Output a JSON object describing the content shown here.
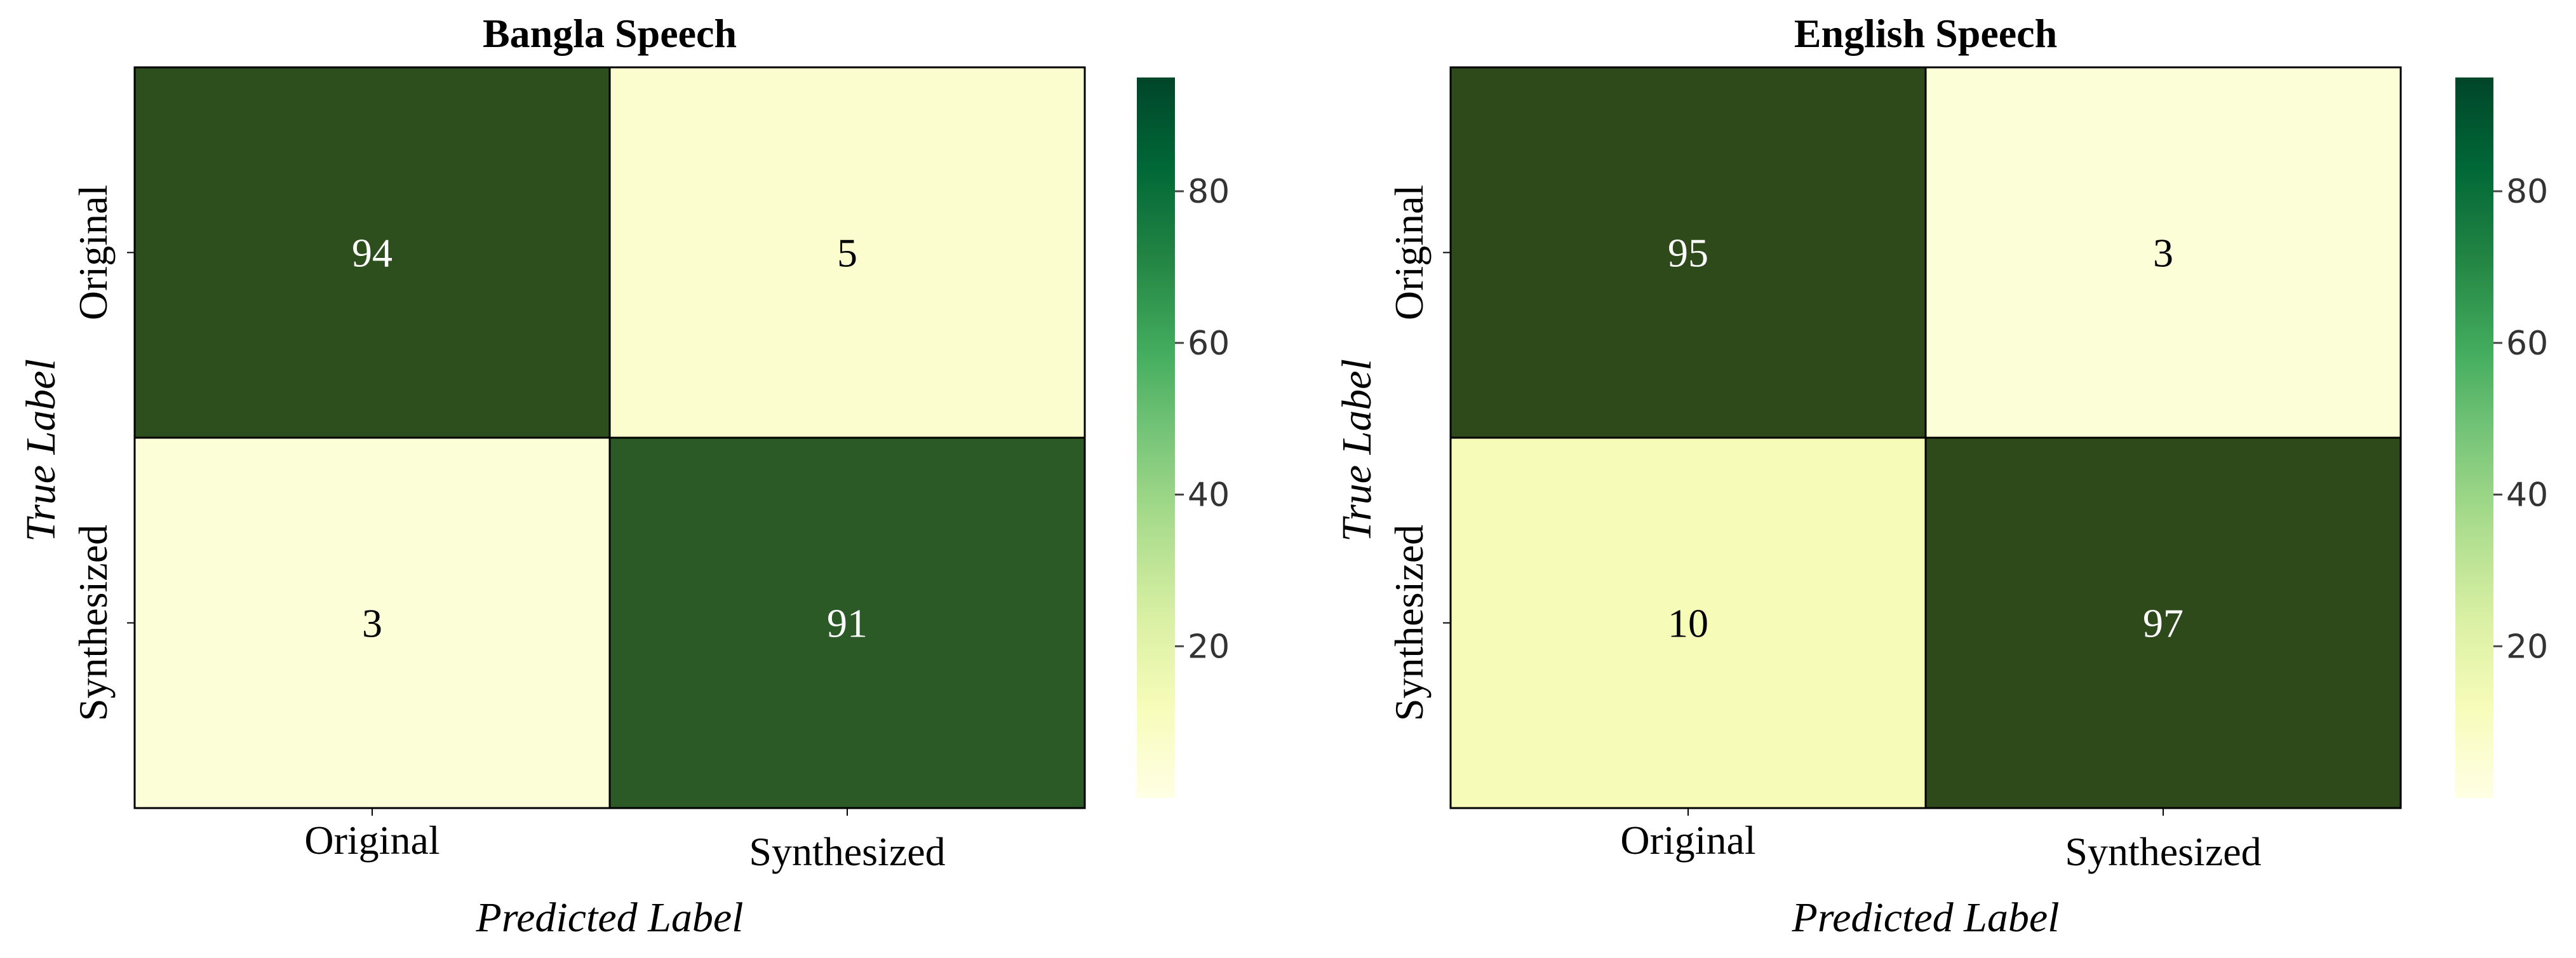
{
  "chart_data": [
    {
      "type": "heatmap",
      "title": "Bangla Speech",
      "xlabel": "Predicted Label",
      "ylabel": "True Label",
      "x_categories": [
        "Original",
        "Synthesized"
      ],
      "y_categories": [
        "Original",
        "Synthesized"
      ],
      "values": [
        [
          94,
          5
        ],
        [
          3,
          91
        ]
      ],
      "colorbar": {
        "colormap": "YlGn",
        "range": [
          0,
          95
        ],
        "ticks": [
          20,
          40,
          60,
          80
        ]
      }
    },
    {
      "type": "heatmap",
      "title": "English Speech",
      "xlabel": "Predicted Label",
      "ylabel": "True Label",
      "x_categories": [
        "Original",
        "Synthesized"
      ],
      "y_categories": [
        "Original",
        "Synthesized"
      ],
      "values": [
        [
          95,
          3
        ],
        [
          10,
          97
        ]
      ],
      "colorbar": {
        "colormap": "YlGn",
        "range": [
          0,
          95
        ],
        "ticks": [
          20,
          40,
          60,
          80
        ]
      }
    }
  ],
  "colors": {
    "high": "#2e4a1a",
    "low": "#ffffe5",
    "text_dark_cell": "#ffffff",
    "text_light_cell": "#000000"
  }
}
